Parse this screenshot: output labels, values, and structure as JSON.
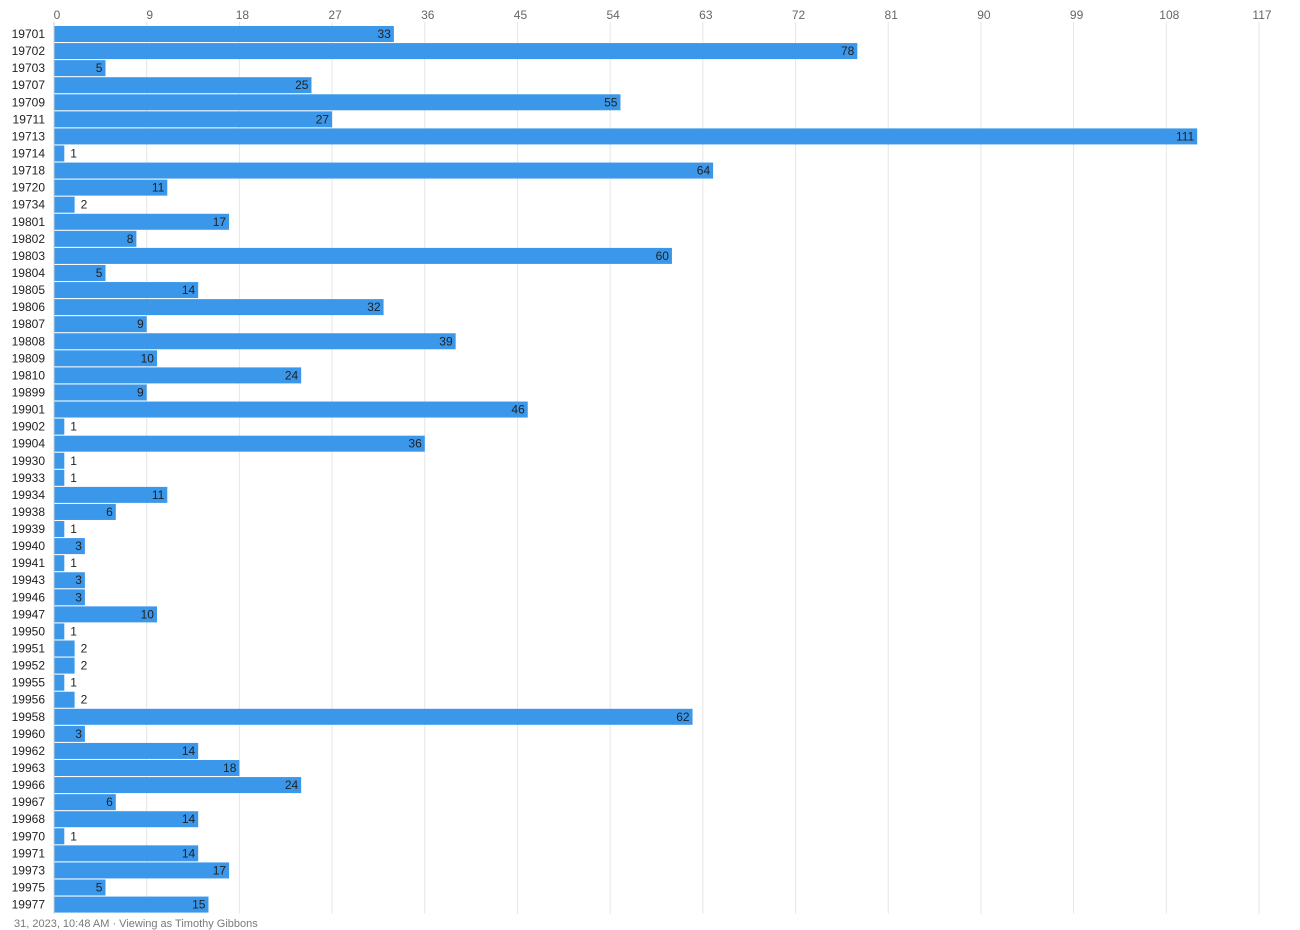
{
  "chart_data": {
    "type": "bar",
    "orientation": "horizontal",
    "title": "",
    "xlabel": "",
    "ylabel": "",
    "xlim": [
      0,
      117
    ],
    "x_ticks": [
      0,
      9,
      18,
      27,
      36,
      45,
      54,
      63,
      72,
      81,
      90,
      99,
      108,
      117
    ],
    "grid": true,
    "data_labels": true,
    "bar_color": "#3a97ea",
    "gridline_color": "#e6e6e6",
    "categories": [
      "19701",
      "19702",
      "19703",
      "19707",
      "19709",
      "19711",
      "19713",
      "19714",
      "19718",
      "19720",
      "19734",
      "19801",
      "19802",
      "19803",
      "19804",
      "19805",
      "19806",
      "19807",
      "19808",
      "19809",
      "19810",
      "19899",
      "19901",
      "19902",
      "19904",
      "19930",
      "19933",
      "19934",
      "19938",
      "19939",
      "19940",
      "19941",
      "19943",
      "19946",
      "19947",
      "19950",
      "19951",
      "19952",
      "19955",
      "19956",
      "19958",
      "19960",
      "19962",
      "19963",
      "19966",
      "19967",
      "19968",
      "19970",
      "19971",
      "19973",
      "19975",
      "19977"
    ],
    "values": [
      33,
      78,
      5,
      25,
      55,
      27,
      111,
      1,
      64,
      11,
      2,
      17,
      8,
      60,
      5,
      14,
      32,
      9,
      39,
      10,
      24,
      9,
      46,
      1,
      36,
      1,
      1,
      11,
      6,
      1,
      3,
      1,
      3,
      3,
      10,
      1,
      2,
      2,
      1,
      2,
      62,
      3,
      14,
      18,
      24,
      6,
      14,
      1,
      14,
      17,
      5,
      15
    ]
  },
  "footer": {
    "text": "31, 2023, 10:48 AM · Viewing as Timothy Gibbons"
  }
}
